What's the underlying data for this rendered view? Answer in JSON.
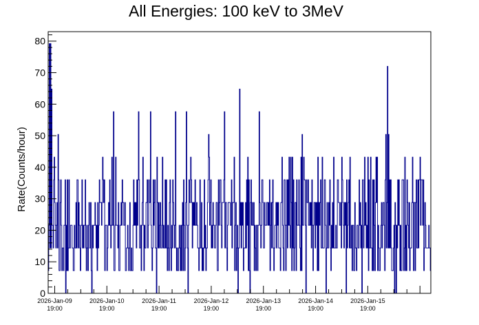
{
  "chart_data": {
    "type": "bar",
    "title": "All Energies:  100 keV to 3MeV",
    "xlabel": "",
    "ylabel": "Rate(Counts/hour)",
    "ylim": [
      0,
      83
    ],
    "yticks": [
      0,
      10,
      20,
      30,
      40,
      50,
      60,
      70,
      80
    ],
    "x_tick_labels": [
      {
        "date": "2026-Jan-09",
        "time": "19:00"
      },
      {
        "date": "2026-Jan-10",
        "time": "19:00"
      },
      {
        "date": "2026-Jan-11",
        "time": "19:00"
      },
      {
        "date": "2026-Jan-12",
        "time": "19:00"
      },
      {
        "date": "2026-Jan-13",
        "time": "19:00"
      },
      {
        "date": "2026-Jan-14",
        "time": "19:00"
      },
      {
        "date": "2026-Jan-15",
        "time": "19:00"
      }
    ],
    "x_range_hours": [
      0,
      176
    ],
    "first_major_tick_hour": 3,
    "hours_per_major_tick": 24,
    "minor_ticks_per_major": 4,
    "bin_hours": 0.25,
    "quantum": 7.2,
    "seed": 20260109,
    "peaks": [
      {
        "hour": 0.4,
        "value": 79.2
      },
      {
        "hour": 0.9,
        "value": 79.2
      },
      {
        "hour": 1.6,
        "value": 64.8
      },
      {
        "hour": 4.4,
        "value": 50.4
      },
      {
        "hour": 30.0,
        "value": 57.6
      },
      {
        "hour": 41.5,
        "value": 57.6
      },
      {
        "hour": 47.0,
        "value": 57.6
      },
      {
        "hour": 58.5,
        "value": 57.6
      },
      {
        "hour": 63.5,
        "value": 57.6
      },
      {
        "hour": 81.0,
        "value": 57.6
      },
      {
        "hour": 88.0,
        "value": 64.8
      },
      {
        "hour": 97.0,
        "value": 57.6
      },
      {
        "hour": 155.2,
        "value": 50.4
      },
      {
        "hour": 155.9,
        "value": 72.0
      },
      {
        "hour": 156.5,
        "value": 50.4
      }
    ],
    "color": "#00008b"
  }
}
